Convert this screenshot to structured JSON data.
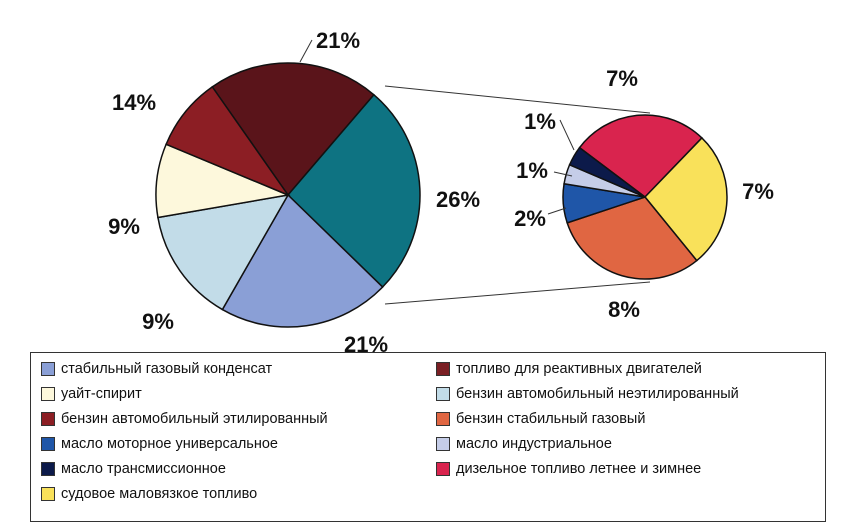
{
  "chart_data": {
    "type": "pie",
    "main_pie": [
      {
        "key": "sgk",
        "label": "21%",
        "value": 21
      },
      {
        "key": "bse",
        "label": "26%",
        "value": 26
      },
      {
        "key": "tdv",
        "label": "21%",
        "value": 21
      },
      {
        "key": "bne",
        "label": "14%",
        "value": 14
      },
      {
        "key": "white",
        "label": "9%",
        "value": 9
      },
      {
        "key": "bae",
        "label": "9%",
        "value": 9
      }
    ],
    "detail_pie": [
      {
        "key": "diesel",
        "label": "7%",
        "value": 7
      },
      {
        "key": "ship",
        "label": "7%",
        "value": 7
      },
      {
        "key": "gasstab",
        "label": "8%",
        "value": 8
      },
      {
        "key": "motor",
        "label": "2%",
        "value": 2
      },
      {
        "key": "ind",
        "label": "1%",
        "value": 1
      },
      {
        "key": "trans",
        "label": "1%",
        "value": 1
      }
    ],
    "legend": [
      {
        "key": "sgk",
        "label": "стабильный газовый конденсат",
        "color": "#8a9fd6"
      },
      {
        "key": "tdv",
        "label": "топливо для реактивных двигателей",
        "color": "#7a1f24"
      },
      {
        "key": "white",
        "label": "уайт-спирит",
        "color": "#fdf8dc"
      },
      {
        "key": "bne",
        "label": "бензин автомобильный неэтилированный",
        "color": "#c2dce8"
      },
      {
        "key": "bae",
        "label": "бензин автомобильный этилированный",
        "color": "#8c1e24"
      },
      {
        "key": "gasstab",
        "label": "бензин стабильный газовый",
        "color": "#e06642"
      },
      {
        "key": "motor",
        "label": "масло моторное универсальное",
        "color": "#1f56a8"
      },
      {
        "key": "ind",
        "label": "масло индустриальное",
        "color": "#c5cde8"
      },
      {
        "key": "trans",
        "label": "масло трансмиссионное",
        "color": "#0c1a4a"
      },
      {
        "key": "diesel",
        "label": "дизельное топливо летнее и зимнее",
        "color": "#d9244e"
      },
      {
        "key": "ship",
        "label": "судовое маловязкое топливо",
        "color": "#f9e15a"
      }
    ],
    "colors": {
      "bse": "#0e7382",
      "sgk": "#5a141a"
    }
  }
}
